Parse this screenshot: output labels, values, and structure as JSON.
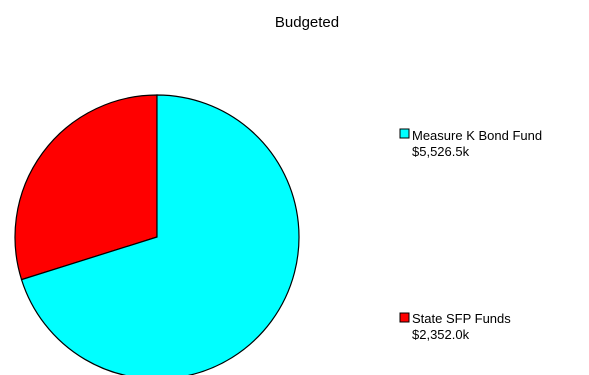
{
  "chart_data": {
    "type": "pie",
    "title": "Budgeted",
    "legend_position": "right",
    "slices": [
      {
        "name": "Measure K Bond Fund",
        "value_label": "$5,526.5k",
        "value": 5526.5,
        "color": "#00ffff"
      },
      {
        "name": "State SFP Funds",
        "value_label": "$2,352.0k",
        "value": 2352.0,
        "color": "#ff0000"
      }
    ]
  }
}
